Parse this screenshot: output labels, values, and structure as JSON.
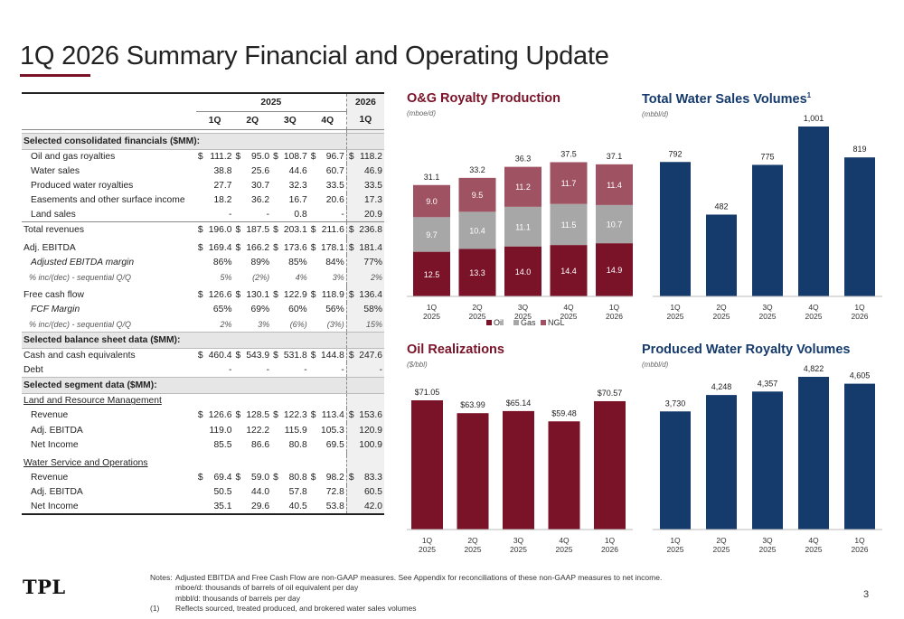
{
  "title": "1Q 2026 Summary Financial and Operating Update",
  "table": {
    "years": {
      "y2025": "2025",
      "y2026": "2026"
    },
    "quarters": [
      "1Q",
      "2Q",
      "3Q",
      "4Q",
      "1Q"
    ],
    "sections": {
      "consolidated": "Selected consolidated financials ($MM):",
      "balance": "Selected balance sheet data ($MM):",
      "segment": "Selected segment data ($MM):"
    },
    "rows": {
      "og_royalties": {
        "label": "Oil and gas royalties",
        "values": [
          "111.2",
          "95.0",
          "108.7",
          "96.7",
          "118.2"
        ]
      },
      "water_sales": {
        "label": "Water sales",
        "values": [
          "38.8",
          "25.6",
          "44.6",
          "60.7",
          "46.9"
        ]
      },
      "pw_royalties": {
        "label": "Produced water royalties",
        "values": [
          "27.7",
          "30.7",
          "32.3",
          "33.5",
          "33.5"
        ]
      },
      "easements": {
        "label": "Easements and other surface income",
        "values": [
          "18.2",
          "36.2",
          "16.7",
          "20.6",
          "17.3"
        ]
      },
      "land_sales": {
        "label": "Land sales",
        "values": [
          "-",
          "-",
          "0.8",
          "-",
          "20.9"
        ]
      },
      "total_rev": {
        "label": "Total revenues",
        "values": [
          "196.0",
          "187.5",
          "203.1",
          "211.6",
          "236.8"
        ]
      },
      "adj_ebitda": {
        "label": "Adj. EBITDA",
        "values": [
          "169.4",
          "166.2",
          "173.6",
          "178.1",
          "181.4"
        ]
      },
      "ebitda_margin": {
        "label": "Adjusted EBITDA margin",
        "values": [
          "86%",
          "89%",
          "85%",
          "84%",
          "77%"
        ]
      },
      "ebitda_incdec": {
        "label": "% inc/(dec) - sequential Q/Q",
        "values": [
          "5%",
          "(2%)",
          "4%",
          "3%",
          "2%"
        ]
      },
      "fcf": {
        "label": "Free cash flow",
        "values": [
          "126.6",
          "130.1",
          "122.9",
          "118.9",
          "136.4"
        ]
      },
      "fcf_margin": {
        "label": "FCF Margin",
        "values": [
          "65%",
          "69%",
          "60%",
          "56%",
          "58%"
        ]
      },
      "fcf_incdec": {
        "label": "% inc/(dec) - sequential Q/Q",
        "values": [
          "2%",
          "3%",
          "(6%)",
          "(3%)",
          "15%"
        ]
      },
      "cash": {
        "label": "Cash and cash equivalents",
        "values": [
          "460.4",
          "543.9",
          "531.8",
          "144.8",
          "247.6"
        ]
      },
      "debt": {
        "label": "Debt",
        "values": [
          "-",
          "-",
          "-",
          "-",
          "-"
        ]
      },
      "lrm_title": {
        "label": "Land and Resource Management"
      },
      "lrm_rev": {
        "label": "Revenue",
        "values": [
          "126.6",
          "128.5",
          "122.3",
          "113.4",
          "153.6"
        ]
      },
      "lrm_ebitda": {
        "label": "Adj. EBITDA",
        "values": [
          "119.0",
          "122.2",
          "115.9",
          "105.3",
          "120.9"
        ]
      },
      "lrm_ni": {
        "label": "Net Income",
        "values": [
          "85.5",
          "86.6",
          "80.8",
          "69.5",
          "100.9"
        ]
      },
      "wso_title": {
        "label": "Water Service and Operations"
      },
      "wso_rev": {
        "label": "Revenue",
        "values": [
          "69.4",
          "59.0",
          "80.8",
          "98.2",
          "83.3"
        ]
      },
      "wso_ebitda": {
        "label": "Adj. EBITDA",
        "values": [
          "50.5",
          "44.0",
          "57.8",
          "72.8",
          "60.5"
        ]
      },
      "wso_ni": {
        "label": "Net Income",
        "values": [
          "35.1",
          "29.6",
          "40.5",
          "53.8",
          "42.0"
        ]
      }
    },
    "dollar_sign": "$"
  },
  "chart_data": [
    {
      "id": "og",
      "type": "bar",
      "stacked": true,
      "title": "O&G Royalty Production",
      "unit": "(mboe/d)",
      "categories": [
        "1Q\n2025",
        "2Q\n2025",
        "3Q\n2025",
        "4Q\n2025",
        "1Q\n2026"
      ],
      "series": [
        {
          "name": "Oil",
          "values": [
            12.5,
            13.3,
            14.0,
            14.4,
            14.9
          ],
          "color": "#7a1228"
        },
        {
          "name": "Gas",
          "values": [
            9.7,
            10.4,
            11.1,
            11.5,
            10.7
          ],
          "color": "#a7a7a7"
        },
        {
          "name": "NGL",
          "values": [
            9.0,
            9.5,
            11.2,
            11.7,
            11.4
          ],
          "color": "#9e5262"
        }
      ],
      "totals": [
        "31.1",
        "33.2",
        "36.3",
        "37.5",
        "37.1"
      ],
      "legend": "bottom"
    },
    {
      "id": "water_sales",
      "type": "bar",
      "title": "Total Water Sales Volumes",
      "title_sup": "1",
      "unit": "(mbbl/d)",
      "categories": [
        "1Q\n2025",
        "2Q\n2025",
        "3Q\n2025",
        "4Q\n2025",
        "1Q\n2026"
      ],
      "values": [
        792,
        482,
        775,
        1001,
        819
      ],
      "labels": [
        "792",
        "482",
        "775",
        "1,001",
        "819"
      ],
      "color": "#153a6c"
    },
    {
      "id": "oil_real",
      "type": "bar",
      "title": "Oil Realizations",
      "unit": "($/bbl)",
      "categories": [
        "1Q\n2025",
        "2Q\n2025",
        "3Q\n2025",
        "4Q\n2025",
        "1Q\n2026"
      ],
      "values": [
        71.05,
        63.99,
        65.14,
        59.48,
        70.57
      ],
      "labels": [
        "$71.05",
        "$63.99",
        "$65.14",
        "$59.48",
        "$70.57"
      ],
      "color": "#7a1228"
    },
    {
      "id": "pw_royalty",
      "type": "bar",
      "title": "Produced Water Royalty Volumes",
      "unit": "(mbbl/d)",
      "categories": [
        "1Q\n2025",
        "2Q\n2025",
        "3Q\n2025",
        "4Q\n2025",
        "1Q\n2026"
      ],
      "values": [
        3730,
        4248,
        4357,
        4822,
        4605
      ],
      "labels": [
        "3,730",
        "4,248",
        "4,357",
        "4,822",
        "4,605"
      ],
      "color": "#153a6c"
    }
  ],
  "notes": {
    "notes_key": "Notes:",
    "note1": "Adjusted EBITDA and Free Cash Flow are non-GAAP measures.  See Appendix for reconciliations of these non-GAAP measures to net income.",
    "note2": "mboe/d: thousands of barrels of oil equivalent per day",
    "note3": "mbbl/d: thousands of barrels per day",
    "fn_key": "(1)",
    "fn1": "Reflects sourced, treated produced, and brokered water sales volumes"
  },
  "logo": "TPL",
  "page_number": "3"
}
